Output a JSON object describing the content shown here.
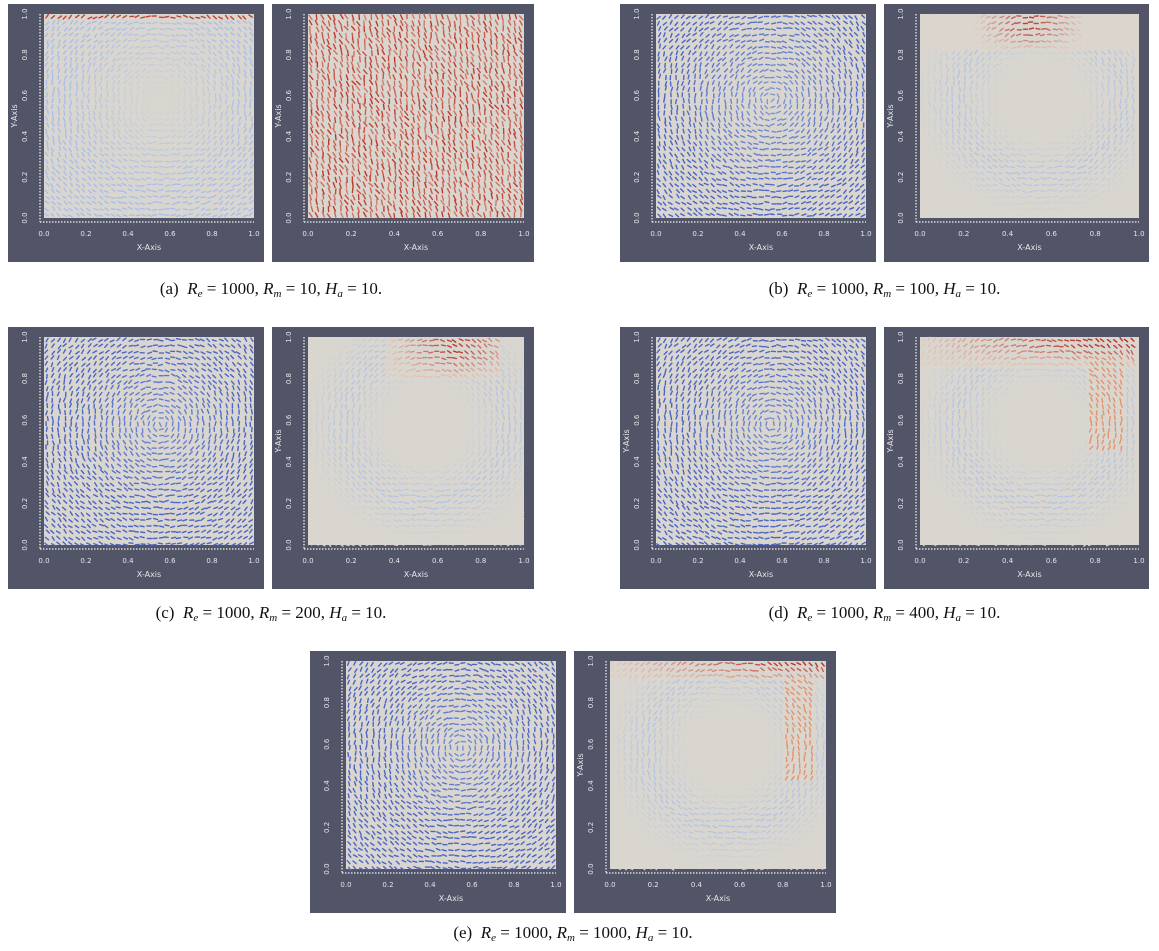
{
  "figure": {
    "panels": [
      {
        "id": "a-left",
        "scheme": "blue-light",
        "hot": "corner-top",
        "y_label": "Y-Axis",
        "x_label": "X-Axis"
      },
      {
        "id": "a-right",
        "scheme": "red-field",
        "hot": "none",
        "y_label": "Y-Axis",
        "x_label": "X-Axis"
      },
      {
        "id": "b-left",
        "scheme": "blue",
        "hot": "none",
        "y_label": "",
        "x_label": "X-Axis"
      },
      {
        "id": "b-right",
        "scheme": "mixed",
        "hot": "top-center",
        "y_label": "Y-Axis",
        "x_label": "X-Axis"
      },
      {
        "id": "c-left",
        "scheme": "blue-dark",
        "hot": "none",
        "y_label": "",
        "x_label": "X-Axis"
      },
      {
        "id": "c-right",
        "scheme": "mixed",
        "hot": "top-right",
        "y_label": "Y-Axis",
        "x_label": "X-Axis"
      },
      {
        "id": "d-left",
        "scheme": "blue-dark",
        "hot": "none",
        "y_label": "Y-Axis",
        "x_label": "X-Axis"
      },
      {
        "id": "d-right",
        "scheme": "mixed",
        "hot": "top-right-wall",
        "y_label": "Y-Axis",
        "x_label": "X-Axis"
      },
      {
        "id": "e-left",
        "scheme": "blue-dark",
        "hot": "none",
        "y_label": "",
        "x_label": "X-Axis"
      },
      {
        "id": "e-right",
        "scheme": "mixed",
        "hot": "right-wall",
        "y_label": "Y-Axis",
        "x_label": "X-Axis"
      }
    ],
    "tick_labels": [
      "0.0",
      "0.2",
      "0.4",
      "0.6",
      "0.8",
      "1.0"
    ],
    "captions": [
      {
        "id": "a",
        "label": "(a)",
        "re": "1000",
        "rm": "10",
        "ha": "10"
      },
      {
        "id": "b",
        "label": "(b)",
        "re": "1000",
        "rm": "100",
        "ha": "10"
      },
      {
        "id": "c",
        "label": "(c)",
        "re": "1000",
        "rm": "200",
        "ha": "10"
      },
      {
        "id": "d",
        "label": "(d)",
        "re": "1000",
        "rm": "400",
        "ha": "10"
      },
      {
        "id": "e",
        "label": "(e)",
        "re": "1000",
        "rm": "1000",
        "ha": "10"
      }
    ],
    "colors": {
      "panel_bg": "#525467",
      "field_bg": "#d9d6cf",
      "blue": "#4a64c8",
      "light_blue": "#a9c0ee",
      "red": "#c23a2e"
    }
  }
}
